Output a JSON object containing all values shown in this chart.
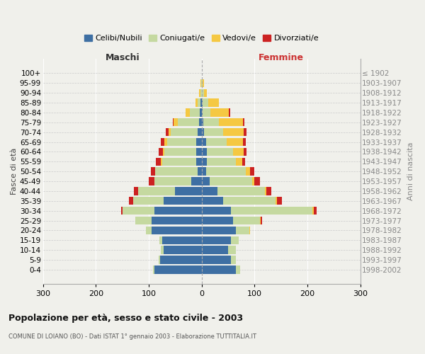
{
  "age_groups": [
    "0-4",
    "5-9",
    "10-14",
    "15-19",
    "20-24",
    "25-29",
    "30-34",
    "35-39",
    "40-44",
    "45-49",
    "50-54",
    "55-59",
    "60-64",
    "65-69",
    "70-74",
    "75-79",
    "80-84",
    "85-89",
    "90-94",
    "95-99",
    "100+"
  ],
  "birth_years": [
    "1998-2002",
    "1993-1997",
    "1988-1992",
    "1983-1987",
    "1978-1982",
    "1973-1977",
    "1968-1972",
    "1963-1967",
    "1958-1962",
    "1953-1957",
    "1948-1952",
    "1943-1947",
    "1938-1942",
    "1933-1937",
    "1928-1932",
    "1923-1927",
    "1918-1922",
    "1913-1917",
    "1908-1912",
    "1903-1907",
    "≤ 1902"
  ],
  "maschi": {
    "celibi": [
      90,
      78,
      72,
      75,
      95,
      95,
      90,
      72,
      50,
      20,
      8,
      10,
      10,
      10,
      8,
      5,
      3,
      2,
      0,
      0,
      0
    ],
    "coniugati": [
      2,
      3,
      5,
      5,
      10,
      30,
      60,
      58,
      70,
      70,
      80,
      65,
      60,
      55,
      50,
      40,
      20,
      5,
      2,
      1,
      0
    ],
    "vedovi": [
      0,
      0,
      0,
      0,
      0,
      0,
      0,
      0,
      0,
      0,
      0,
      2,
      3,
      5,
      5,
      8,
      8,
      5,
      3,
      1,
      0
    ],
    "divorziati": [
      0,
      0,
      0,
      0,
      0,
      0,
      2,
      8,
      8,
      10,
      8,
      10,
      8,
      7,
      5,
      2,
      0,
      0,
      0,
      0,
      0
    ]
  },
  "femmine": {
    "nubili": [
      65,
      55,
      50,
      55,
      65,
      60,
      55,
      40,
      30,
      15,
      8,
      10,
      10,
      8,
      5,
      3,
      2,
      2,
      0,
      0,
      0
    ],
    "coniugate": [
      8,
      10,
      15,
      15,
      25,
      50,
      155,
      100,
      90,
      80,
      75,
      55,
      50,
      40,
      35,
      30,
      15,
      10,
      5,
      2,
      0
    ],
    "vedove": [
      0,
      0,
      0,
      0,
      2,
      2,
      2,
      2,
      2,
      5,
      8,
      12,
      20,
      30,
      40,
      45,
      35,
      20,
      5,
      2,
      1
    ],
    "divorziate": [
      0,
      0,
      0,
      0,
      0,
      2,
      5,
      10,
      10,
      10,
      8,
      5,
      5,
      5,
      5,
      3,
      2,
      0,
      0,
      0,
      0
    ]
  },
  "colors": {
    "celibi": "#3e6fa3",
    "coniugati": "#c5d9a0",
    "vedovi": "#f5c842",
    "divorziati": "#cc2222"
  },
  "xlim": [
    -300,
    300
  ],
  "xticks": [
    -300,
    -200,
    -100,
    0,
    100,
    200,
    300
  ],
  "xlabel_left": "Maschi",
  "xlabel_right": "Femmine",
  "ylabel_left": "Fasce di età",
  "ylabel_right": "Anni di nascita",
  "title": "Popolazione per età, sesso e stato civile - 2003",
  "subtitle": "COMUNE DI LOIANO (BO) - Dati ISTAT 1° gennaio 2003 - Elaborazione TUTTITALIA.IT",
  "legend_labels": [
    "Celibi/Nubili",
    "Coniugati/e",
    "Vedovi/e",
    "Divorziati/e"
  ],
  "bg_color": "#f0f0eb"
}
